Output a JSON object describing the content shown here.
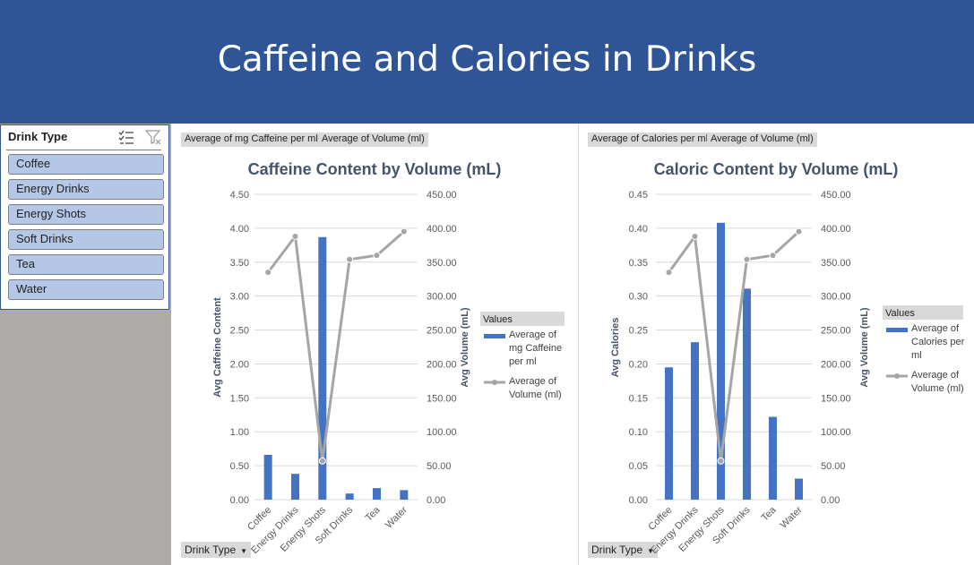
{
  "page": {
    "title": "Caffeine and Calories in Drinks",
    "colors": {
      "banner": "#2f5597",
      "bar": "#4472c4",
      "line": "#a5a5a5",
      "slicer_item": "#b4c7e7"
    }
  },
  "slicer": {
    "title": "Drink Type",
    "icons": [
      "multi-select-icon",
      "clear-filter-icon"
    ],
    "items": [
      "Coffee",
      "Energy Drinks",
      "Energy Shots",
      "Soft Drinks",
      "Tea",
      "Water"
    ]
  },
  "charts": [
    {
      "field_buttons": [
        "Average of mg Caffeine per ml",
        "Average of Volume  (ml)"
      ],
      "axis_button": "Drink Type"
    },
    {
      "field_buttons": [
        "Average of Calories per ml",
        "Average of Volume  (ml)"
      ],
      "axis_button": "Drink Type"
    }
  ],
  "chart_data": [
    {
      "type": "bar",
      "title": "Caffeine Content by Volume (mL)",
      "categories": [
        "Coffee",
        "Energy Drinks",
        "Energy Shots",
        "Soft Drinks",
        "Tea",
        "Water"
      ],
      "ylabel": "Avg Caffeine Content",
      "y2label": "Avg Volume (mL)",
      "ylim": [
        0,
        4.5
      ],
      "y2lim": [
        0,
        450
      ],
      "yticks": [
        "0.00",
        "0.50",
        "1.00",
        "1.50",
        "2.00",
        "2.50",
        "3.00",
        "3.50",
        "4.00",
        "4.50"
      ],
      "y2ticks": [
        "0.00",
        "50.00",
        "100.00",
        "150.00",
        "200.00",
        "250.00",
        "300.00",
        "350.00",
        "400.00",
        "450.00"
      ],
      "grid": true,
      "legend": {
        "title": "Values",
        "position": "right"
      },
      "series": [
        {
          "name": "Average of mg Caffeine per ml",
          "type": "bar",
          "axis": "primary",
          "values": [
            0.66,
            0.38,
            3.87,
            0.09,
            0.17,
            0.14
          ]
        },
        {
          "name": "Average of Volume (ml)",
          "type": "line",
          "axis": "secondary",
          "values": [
            335,
            388,
            57,
            354,
            360,
            395
          ]
        }
      ]
    },
    {
      "type": "bar",
      "title": "Caloric Content by Volume (mL)",
      "categories": [
        "Coffee",
        "Energy Drinks",
        "Energy Shots",
        "Soft Drinks",
        "Tea",
        "Water"
      ],
      "ylabel": "Avg Calories",
      "y2label": "Avg Volume (mL)",
      "ylim": [
        0,
        0.45
      ],
      "y2lim": [
        0,
        450
      ],
      "yticks": [
        "0.00",
        "0.05",
        "0.10",
        "0.15",
        "0.20",
        "0.25",
        "0.30",
        "0.35",
        "0.40",
        "0.45"
      ],
      "y2ticks": [
        "0.00",
        "50.00",
        "100.00",
        "150.00",
        "200.00",
        "250.00",
        "300.00",
        "350.00",
        "400.00",
        "450.00"
      ],
      "grid": true,
      "legend": {
        "title": "Values",
        "position": "right"
      },
      "series": [
        {
          "name": "Average of Calories per ml",
          "type": "bar",
          "axis": "primary",
          "values": [
            0.195,
            0.232,
            0.408,
            0.311,
            0.122,
            0.031
          ]
        },
        {
          "name": "Average of Volume (ml)",
          "type": "line",
          "axis": "secondary",
          "values": [
            335,
            388,
            57,
            354,
            360,
            395
          ]
        }
      ]
    }
  ]
}
